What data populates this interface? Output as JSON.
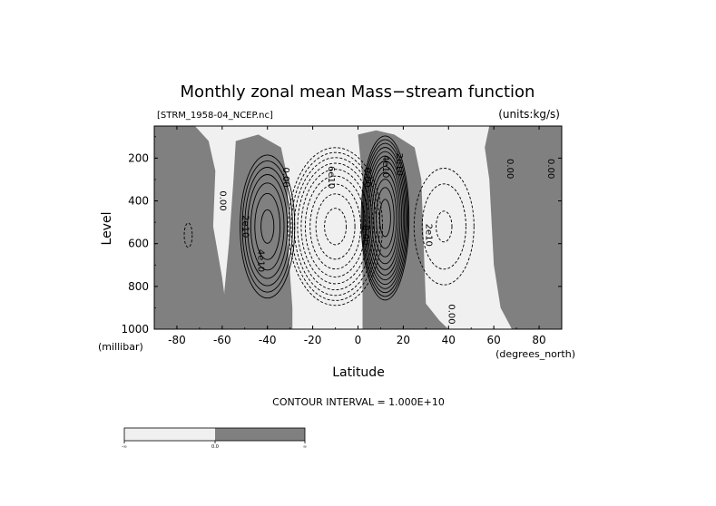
{
  "chart_data": {
    "type": "contour",
    "title": "Monthly zonal mean Mass−stream function",
    "source_file": "[STRM_1958-04_NCEP.nc]",
    "units": "(units:kg/s)",
    "xlabel": "Latitude",
    "x_units": "(degrees_north)",
    "ylabel": "Level",
    "y_units": "(millibar)",
    "xlim": [
      -90,
      90
    ],
    "ylim": [
      1000,
      50
    ],
    "y_inverted": true,
    "x_ticks": [
      "-80",
      "-60",
      "-40",
      "-20",
      "0",
      "20",
      "40",
      "60",
      "80"
    ],
    "x_tick_values": [
      -80,
      -60,
      -40,
      -20,
      0,
      20,
      40,
      60,
      80
    ],
    "y_ticks": [
      "200",
      "400",
      "600",
      "800",
      "1000"
    ],
    "y_tick_values": [
      200,
      400,
      600,
      800,
      1000
    ],
    "contour_interval_label": "CONTOUR INTERVAL = 1.000E+10",
    "contour_interval": 10000000000,
    "shading": {
      "negative_color": "#f0f0f0",
      "positive_color": "#808080"
    },
    "colorbar": {
      "tick_labels": [
        "-∞",
        "0.0",
        "∞"
      ]
    },
    "cells": [
      {
        "sign": "positive",
        "lat_center": -40,
        "lat_half_width": 13,
        "p_center": 520,
        "p_half_depth": 360,
        "max_abs": 70000000000.0,
        "levels": 7
      },
      {
        "sign": "negative",
        "lat_center": -10,
        "lat_half_width": 22,
        "p_center": 520,
        "p_half_depth": 390,
        "max_abs": 90000000000.0,
        "levels": 9
      },
      {
        "sign": "positive",
        "lat_center": 12,
        "lat_half_width": 11,
        "p_center": 480,
        "p_half_depth": 400,
        "max_abs": 120000000000.0,
        "levels": 12
      },
      {
        "sign": "negative",
        "lat_center": 38,
        "lat_half_width": 16,
        "p_center": 520,
        "p_half_depth": 330,
        "max_abs": 30000000000.0,
        "levels": 3
      },
      {
        "sign": "negative",
        "lat_center": -75,
        "lat_half_width": 8,
        "p_center": 560,
        "p_half_depth": 260,
        "max_abs": 10000000000.0,
        "levels": 1
      }
    ],
    "contour_labels": [
      {
        "text": "0.00",
        "lat": -61,
        "p": 400
      },
      {
        "text": "2e10",
        "lat": -51,
        "p": 520
      },
      {
        "text": "4e10",
        "lat": -44,
        "p": 680
      },
      {
        "text": "0.00",
        "lat": -33,
        "p": 290
      },
      {
        "text": "6e10",
        "lat": -13,
        "p": 290
      },
      {
        "text": "0.00",
        "lat": 3,
        "p": 290
      },
      {
        "text": "0.00",
        "lat": 2,
        "p": 560
      },
      {
        "text": "2e10",
        "lat": 17,
        "p": 230
      },
      {
        "text": "4e10",
        "lat": 11,
        "p": 240
      },
      {
        "text": "2e10",
        "lat": 30,
        "p": 560
      },
      {
        "text": "0.00",
        "lat": 40,
        "p": 930
      },
      {
        "text": "0.00",
        "lat": 66,
        "p": 250
      },
      {
        "text": "0.00",
        "lat": 84,
        "p": 250
      }
    ]
  }
}
